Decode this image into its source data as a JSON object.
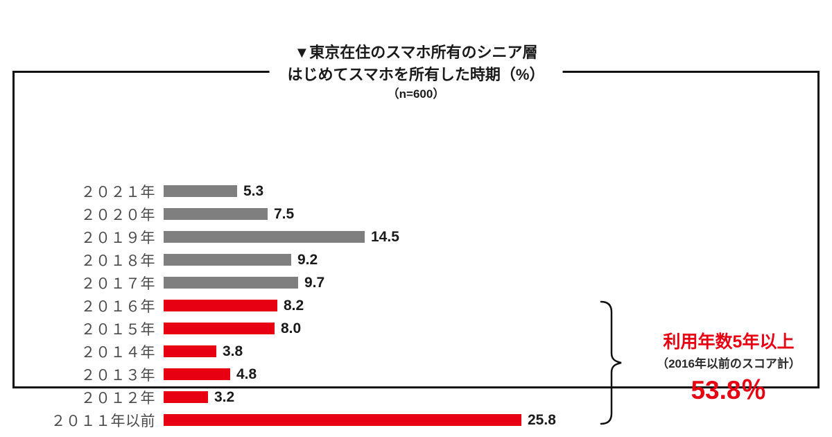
{
  "chart_data": {
    "type": "bar",
    "orientation": "horizontal",
    "title_line1": "▼東京在住のスマホ所有のシニア層",
    "title_line2": "はじめてスマホを所有した時期（%）",
    "n_label": "（n=600）",
    "unit": "%",
    "xlim": [
      0,
      27
    ],
    "grid": false,
    "legend": "none",
    "value_labels_shown": true,
    "categories": [
      "２０２１年",
      "２０２０年",
      "２０１９年",
      "２０１８年",
      "２０１７年",
      "２０１６年",
      "２０１５年",
      "２０１４年",
      "２０１３年",
      "２０１２年",
      "２０１１年以前"
    ],
    "values": [
      5.3,
      7.5,
      14.5,
      9.2,
      9.7,
      8.2,
      8.0,
      3.8,
      4.8,
      3.2,
      25.8
    ],
    "bar_color_keys": [
      "gray",
      "gray",
      "gray",
      "gray",
      "gray",
      "red",
      "red",
      "red",
      "red",
      "red",
      "red"
    ],
    "colors": {
      "gray": "#7f7f7f",
      "red": "#e60012",
      "annotation_red": "#e60012",
      "text": "#1a1a1a"
    },
    "annotation": {
      "heading": "利用年数5年以上",
      "sub": "（2016年以前のスコア計）",
      "total": "53.8％"
    }
  }
}
